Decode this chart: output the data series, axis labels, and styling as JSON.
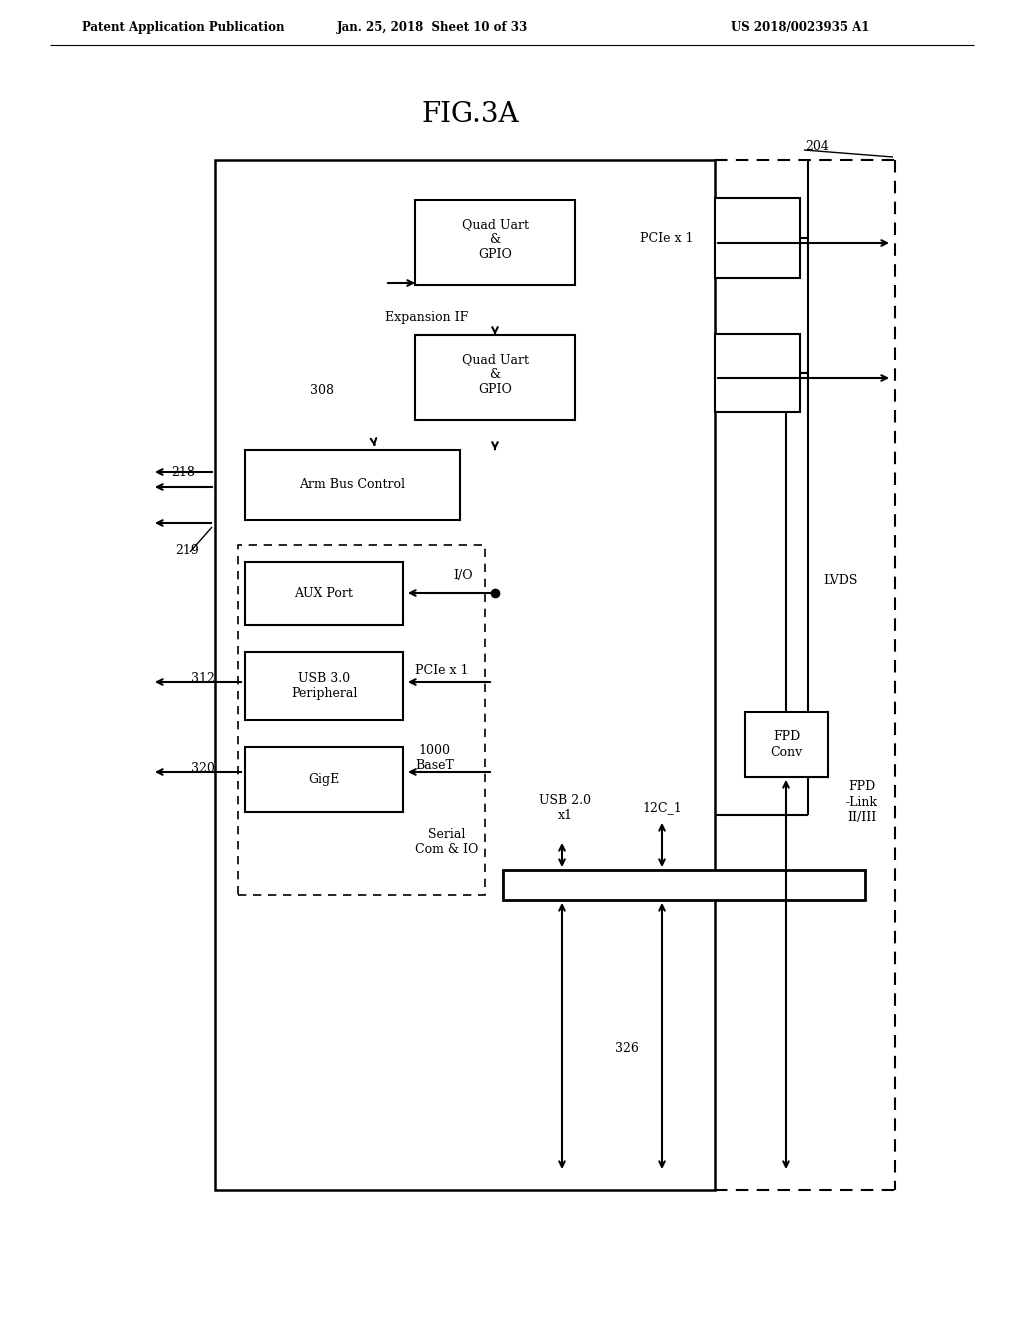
{
  "header_left": "Patent Application Publication",
  "header_mid": "Jan. 25, 2018  Sheet 10 of 33",
  "header_right": "US 2018/0023935 A1",
  "fig_title": "FIG.3A",
  "bg_color": "#ffffff",
  "lc": "black",
  "label_204": "204",
  "label_308": "308",
  "label_218": "218",
  "label_219": "219",
  "label_312": "312",
  "label_320": "320",
  "label_326": "326"
}
